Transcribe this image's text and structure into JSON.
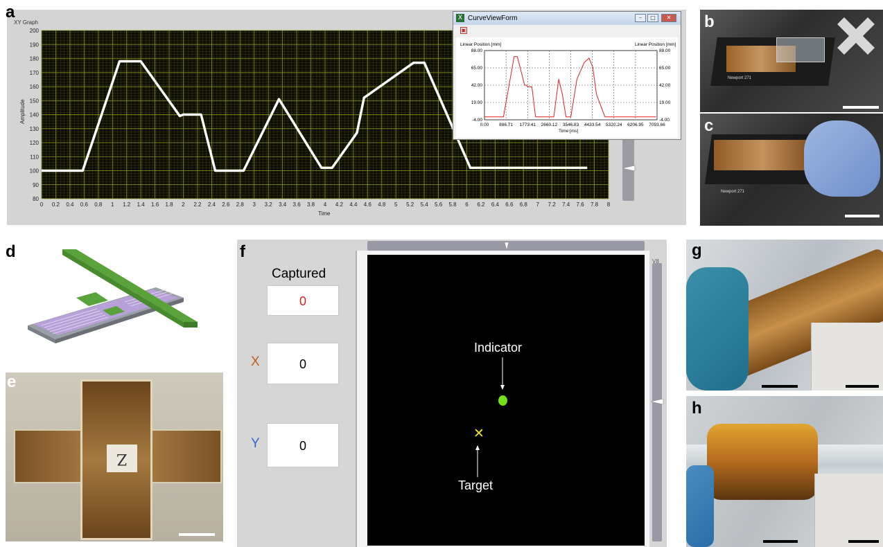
{
  "panel_labels": {
    "a": "a",
    "b": "b",
    "c": "c",
    "d": "d",
    "e": "e",
    "f": "f",
    "g": "g",
    "h": "h"
  },
  "xy_graph": {
    "title": "XY Graph",
    "ylabel": "Amplitude",
    "xlabel": "Time",
    "y_ticks": [
      "200",
      "190",
      "180",
      "170",
      "160",
      "150",
      "140",
      "130",
      "120",
      "110",
      "100",
      "90",
      "80"
    ],
    "x_ticks": [
      "0",
      "0.2",
      "0.4",
      "0.6",
      "0.8",
      "1",
      "1.2",
      "1.4",
      "1.6",
      "1.8",
      "2",
      "2.2",
      "2.4",
      "2.6",
      "2.8",
      "3",
      "3.2",
      "3.4",
      "3.6",
      "3.8",
      "4",
      "4.2",
      "4.4",
      "4.6",
      "4.8",
      "5",
      "5.2",
      "5.4",
      "5.6",
      "5.8",
      "6",
      "6.2",
      "6.4",
      "6.6",
      "6.8",
      "7",
      "7.2",
      "7.4",
      "7.6",
      "7.8",
      "8"
    ],
    "colors": {
      "plot_bg": "#0c0c00",
      "grid": "#7a8a18",
      "trace": "#ffffff"
    }
  },
  "curve_view": {
    "window_title": "CurveViewForm",
    "left_axis_label": "Linear Position [mm]",
    "right_axis_label": "Linear Position [mm]",
    "xlabel": "Time [ms]",
    "y_ticks": [
      "88.00",
      "65.00",
      "42.00",
      "19.00",
      "-4.00"
    ],
    "x_ticks": [
      "0.00",
      "886.71",
      "1773.41",
      "2660.12",
      "3546.83",
      "4433.54",
      "5320.24",
      "6206.95",
      "7093.66"
    ],
    "line_color": "#e02020"
  },
  "chart_data": [
    {
      "type": "line",
      "title": "XY Graph",
      "xlabel": "Time",
      "ylabel": "Amplitude",
      "xlim": [
        0,
        8
      ],
      "ylim": [
        80,
        200
      ],
      "grid": true,
      "series": [
        {
          "x": [
            0,
            0.58,
            1.1,
            1.4,
            1.95,
            2.0,
            2.25,
            2.45,
            2.85,
            3.35,
            3.95,
            4.1,
            4.45,
            4.55,
            5.25,
            5.4,
            6.05,
            7.7
          ],
          "y": [
            100,
            100,
            178,
            178,
            139,
            140,
            140,
            100,
            100,
            151,
            102,
            102,
            127,
            152,
            177,
            177,
            102,
            102
          ]
        }
      ]
    },
    {
      "type": "line",
      "title": "CurveViewForm",
      "xlabel": "Time [ms]",
      "ylabel": "Linear Position [mm]",
      "xlim": [
        0,
        7093.66
      ],
      "ylim": [
        -4,
        88
      ],
      "grid": true,
      "series": [
        {
          "x": [
            0,
            780,
            1220,
            1350,
            1650,
            1700,
            1800,
            1950,
            2100,
            2650,
            2700,
            2850,
            3050,
            3200,
            3350,
            3550,
            3800,
            4100,
            4300,
            4450,
            4600,
            4950,
            5150,
            5300,
            6500,
            7050
          ],
          "y": [
            0,
            0,
            80,
            80,
            42,
            42,
            40,
            40,
            0,
            0,
            0,
            0,
            50,
            30,
            0,
            0,
            50,
            72,
            78,
            66,
            30,
            0,
            0,
            0,
            0,
            0
          ]
        }
      ]
    }
  ],
  "panel_f": {
    "captured_label": "Captured",
    "captured_value": "0",
    "x_label": "X",
    "x_value": "0",
    "y_label": "Y",
    "y_value": "0",
    "indicator_label": "Indicator",
    "target_label": "Target",
    "side_text": "V8"
  },
  "photos": {
    "e_note": "Z"
  }
}
